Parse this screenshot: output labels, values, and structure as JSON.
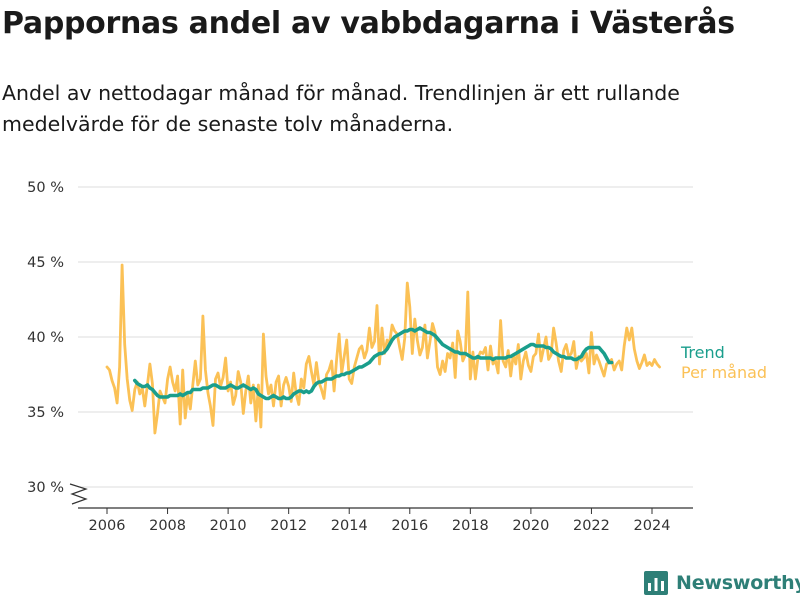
{
  "title": "Pappornas andel av vabbdagarna i Västerås",
  "subtitle": "Andel av nettodagar månad för månad. Trendlinjen är ett rullande medelvärde för de senaste tolv månaderna.",
  "brand": "Newsworthy",
  "colors": {
    "trend": "#1a9e8c",
    "monthly": "#fbc156",
    "grid": "#dddddd",
    "axis": "#333333",
    "brand": "#2e7f77"
  },
  "chart_data": {
    "type": "line",
    "ylim": [
      29,
      50
    ],
    "y_ticks": [
      30,
      35,
      40,
      45,
      50
    ],
    "y_tick_labels": [
      "30 %",
      "35 %",
      "40 %",
      "45 %",
      "50 %"
    ],
    "x_ticks": [
      2006,
      2008,
      2010,
      2012,
      2014,
      2016,
      2018,
      2020,
      2022,
      2024
    ],
    "x_tick_labels": [
      "2006",
      "2008",
      "2010",
      "2012",
      "2014",
      "2016",
      "2018",
      "2020",
      "2022",
      "2024"
    ],
    "x_start": "2006-01",
    "axis_break": true,
    "grid": true,
    "series": [
      {
        "name": "Trend",
        "label": "Trend",
        "color": "#1a9e8c",
        "x_start": "2006-12",
        "values": [
          37.1,
          36.9,
          36.8,
          36.7,
          36.7,
          36.8,
          36.6,
          36.5,
          36.3,
          36.1,
          36.0,
          36.0,
          36.0,
          36.0,
          36.1,
          36.1,
          36.1,
          36.1,
          36.2,
          36.1,
          36.2,
          36.3,
          36.3,
          36.5,
          36.5,
          36.5,
          36.5,
          36.6,
          36.6,
          36.6,
          36.7,
          36.8,
          36.8,
          36.7,
          36.6,
          36.6,
          36.6,
          36.7,
          36.8,
          36.7,
          36.6,
          36.6,
          36.7,
          36.8,
          36.7,
          36.6,
          36.5,
          36.6,
          36.5,
          36.2,
          36.1,
          36.0,
          35.9,
          35.9,
          36.0,
          36.1,
          36.0,
          35.9,
          35.9,
          36.0,
          35.9,
          35.9,
          36.0,
          36.2,
          36.3,
          36.4,
          36.4,
          36.3,
          36.4,
          36.3,
          36.4,
          36.7,
          36.9,
          37.0,
          37.0,
          37.1,
          37.2,
          37.2,
          37.2,
          37.3,
          37.4,
          37.4,
          37.5,
          37.5,
          37.6,
          37.6,
          37.7,
          37.8,
          37.9,
          38.0,
          38.0,
          38.1,
          38.2,
          38.3,
          38.5,
          38.7,
          38.8,
          38.9,
          38.9,
          39.0,
          39.2,
          39.5,
          39.8,
          40.0,
          40.1,
          40.2,
          40.3,
          40.4,
          40.4,
          40.5,
          40.5,
          40.4,
          40.5,
          40.6,
          40.5,
          40.4,
          40.3,
          40.3,
          40.2,
          40.1,
          39.9,
          39.7,
          39.5,
          39.4,
          39.3,
          39.2,
          39.1,
          39.0,
          39.0,
          38.9,
          38.9,
          38.9,
          38.8,
          38.7,
          38.6,
          38.6,
          38.7,
          38.6,
          38.6,
          38.6,
          38.6,
          38.6,
          38.5,
          38.6,
          38.6,
          38.6,
          38.6,
          38.6,
          38.7,
          38.7,
          38.8,
          38.9,
          39.0,
          39.1,
          39.2,
          39.3,
          39.4,
          39.5,
          39.5,
          39.4,
          39.4,
          39.4,
          39.4,
          39.3,
          39.3,
          39.2,
          39.0,
          38.9,
          38.8,
          38.7,
          38.7,
          38.6,
          38.6,
          38.6,
          38.5,
          38.5,
          38.6,
          38.7,
          39.0,
          39.2,
          39.3,
          39.3,
          39.3,
          39.3,
          39.3,
          39.1,
          38.9,
          38.6,
          38.3,
          38.3
        ]
      },
      {
        "name": "Per månad",
        "label": "Per månad",
        "color": "#fbc156",
        "x_start": "2006-01",
        "values": [
          38.0,
          37.8,
          37.1,
          36.6,
          35.6,
          38.0,
          44.8,
          39.5,
          37.2,
          35.8,
          35.1,
          36.5,
          37.0,
          36.2,
          36.6,
          35.4,
          36.8,
          38.2,
          36.9,
          33.6,
          34.9,
          36.4,
          36.0,
          35.6,
          37.2,
          38.0,
          37.0,
          36.4,
          37.4,
          34.2,
          37.8,
          34.6,
          36.2,
          35.2,
          36.8,
          38.4,
          36.8,
          37.2,
          41.4,
          37.8,
          36.3,
          35.4,
          34.1,
          37.2,
          37.6,
          36.7,
          37.3,
          38.6,
          36.4,
          37.0,
          35.5,
          36.1,
          37.7,
          37.0,
          34.9,
          36.4,
          37.4,
          35.6,
          36.8,
          34.4,
          36.8,
          34.0,
          40.2,
          37.4,
          36.2,
          36.8,
          35.4,
          37.0,
          37.4,
          35.4,
          36.8,
          37.3,
          36.7,
          35.7,
          37.6,
          36.2,
          35.5,
          37.2,
          36.6,
          38.2,
          38.7,
          37.7,
          36.8,
          38.3,
          37.0,
          36.5,
          35.9,
          37.5,
          37.8,
          38.4,
          36.4,
          38.5,
          40.2,
          37.6,
          38.7,
          39.8,
          37.2,
          36.9,
          38.0,
          38.6,
          39.2,
          39.4,
          38.6,
          39.1,
          40.6,
          39.3,
          39.7,
          42.1,
          38.2,
          40.6,
          38.9,
          39.8,
          39.6,
          40.8,
          40.4,
          40.2,
          39.3,
          38.5,
          39.9,
          43.6,
          42.0,
          38.9,
          41.2,
          39.8,
          38.8,
          39.3,
          40.8,
          38.6,
          39.7,
          40.9,
          40.3,
          38.0,
          37.5,
          38.4,
          37.7,
          38.9,
          38.6,
          39.6,
          37.3,
          40.4,
          39.7,
          38.4,
          38.8,
          43.0,
          37.2,
          39.0,
          37.2,
          38.6,
          39.0,
          38.9,
          39.3,
          37.8,
          39.4,
          38.2,
          38.4,
          37.6,
          41.1,
          38.4,
          38.0,
          39.1,
          37.4,
          38.8,
          38.2,
          39.5,
          37.2,
          38.4,
          39.0,
          38.1,
          37.7,
          38.7,
          38.9,
          40.2,
          38.4,
          39.2,
          40.0,
          38.5,
          38.8,
          40.6,
          39.6,
          38.4,
          37.7,
          39.1,
          39.5,
          38.7,
          38.9,
          39.7,
          37.9,
          38.7,
          38.4,
          38.6,
          38.9,
          37.6,
          40.3,
          38.2,
          38.8,
          38.4,
          37.9,
          37.4,
          38.2,
          38.3,
          38.5,
          37.8,
          38.2,
          38.4,
          37.8,
          39.4,
          40.6,
          39.8,
          40.6,
          39.2,
          38.4,
          37.9,
          38.3,
          38.8,
          38.1,
          38.3,
          38.1,
          38.5,
          38.2,
          38.0
        ]
      }
    ]
  }
}
